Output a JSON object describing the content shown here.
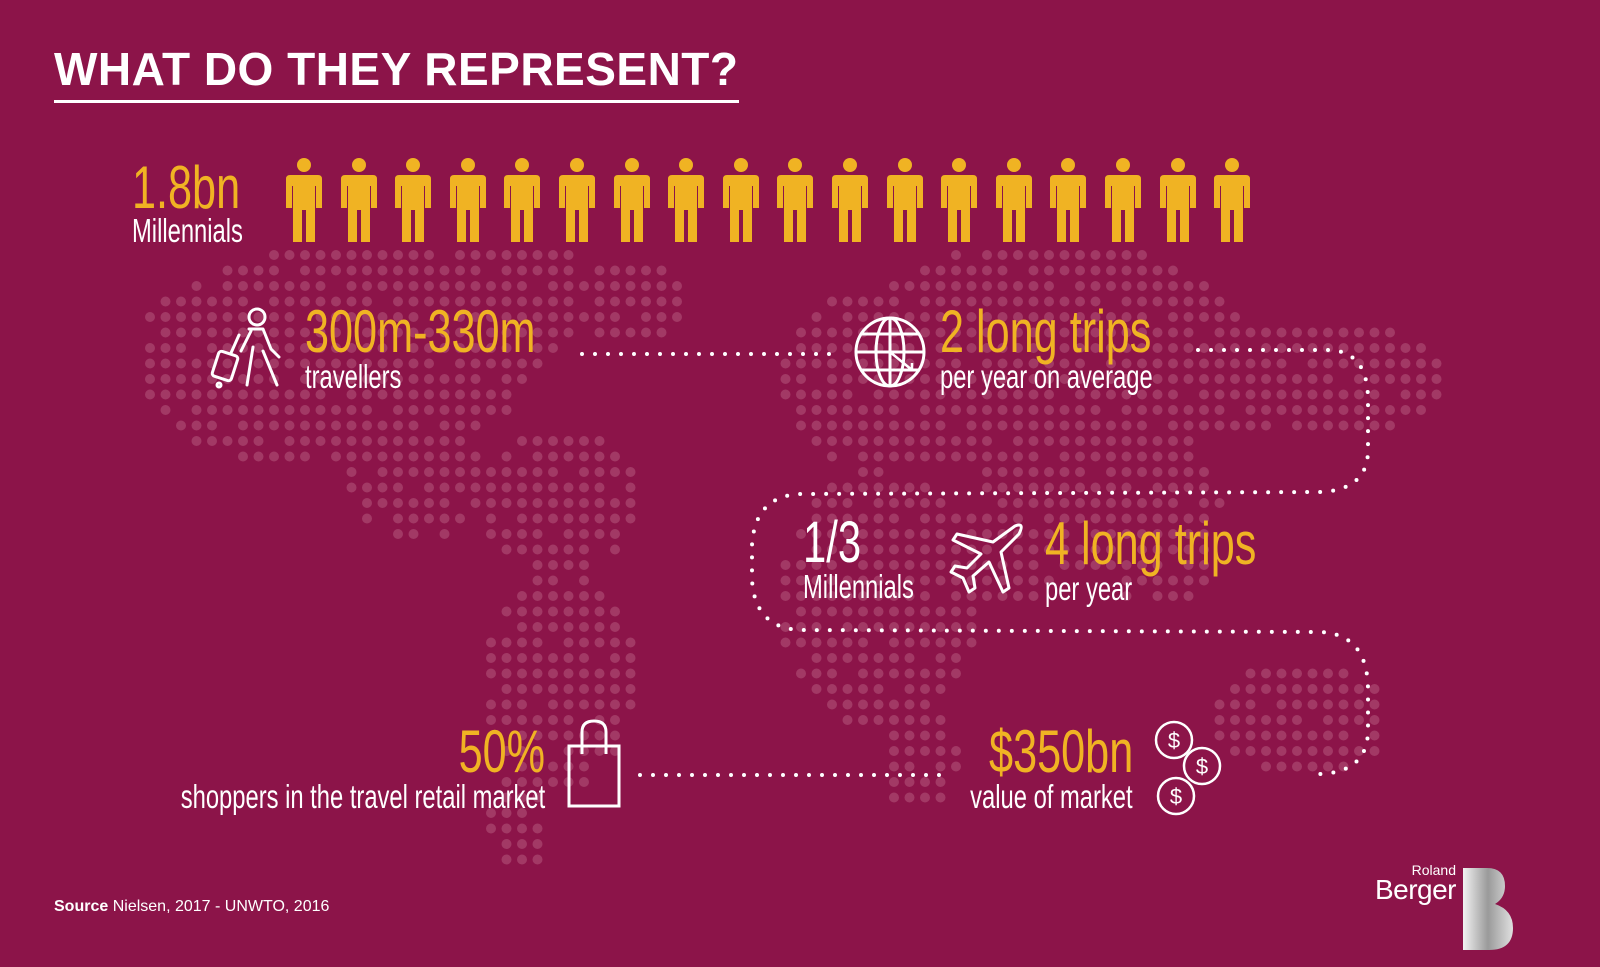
{
  "title": "WHAT DO THEY REPRESENT?",
  "colors": {
    "background": "#8c1449",
    "accent": "#f0b323",
    "text": "#ffffff",
    "map_dots": "#b4577c"
  },
  "millennials": {
    "value": "1.8bn",
    "label": "Millennials",
    "icon": "person-icon",
    "icon_count": 18
  },
  "travellers": {
    "value": "300m-330m",
    "label": "travellers",
    "icon": "traveller-with-luggage-icon"
  },
  "trips": {
    "value": "2 long trips",
    "label": "per year on average",
    "icon": "globe-icon"
  },
  "third": {
    "value": "1/3",
    "label": "Millennials",
    "icon": "airplane-icon"
  },
  "trips4": {
    "value": "4 long trips",
    "label": "per year"
  },
  "shoppers": {
    "value": "50%",
    "label": "shoppers in the travel retail market",
    "icon": "shopping-bag-icon"
  },
  "market": {
    "value": "$350bn",
    "label": "value of market",
    "icon": "coins-icon"
  },
  "source": {
    "label": "Source",
    "text": "Nielsen, 2017 - UNWTO, 2016"
  },
  "logo": {
    "line1": "Roland",
    "line2": "Berger"
  }
}
